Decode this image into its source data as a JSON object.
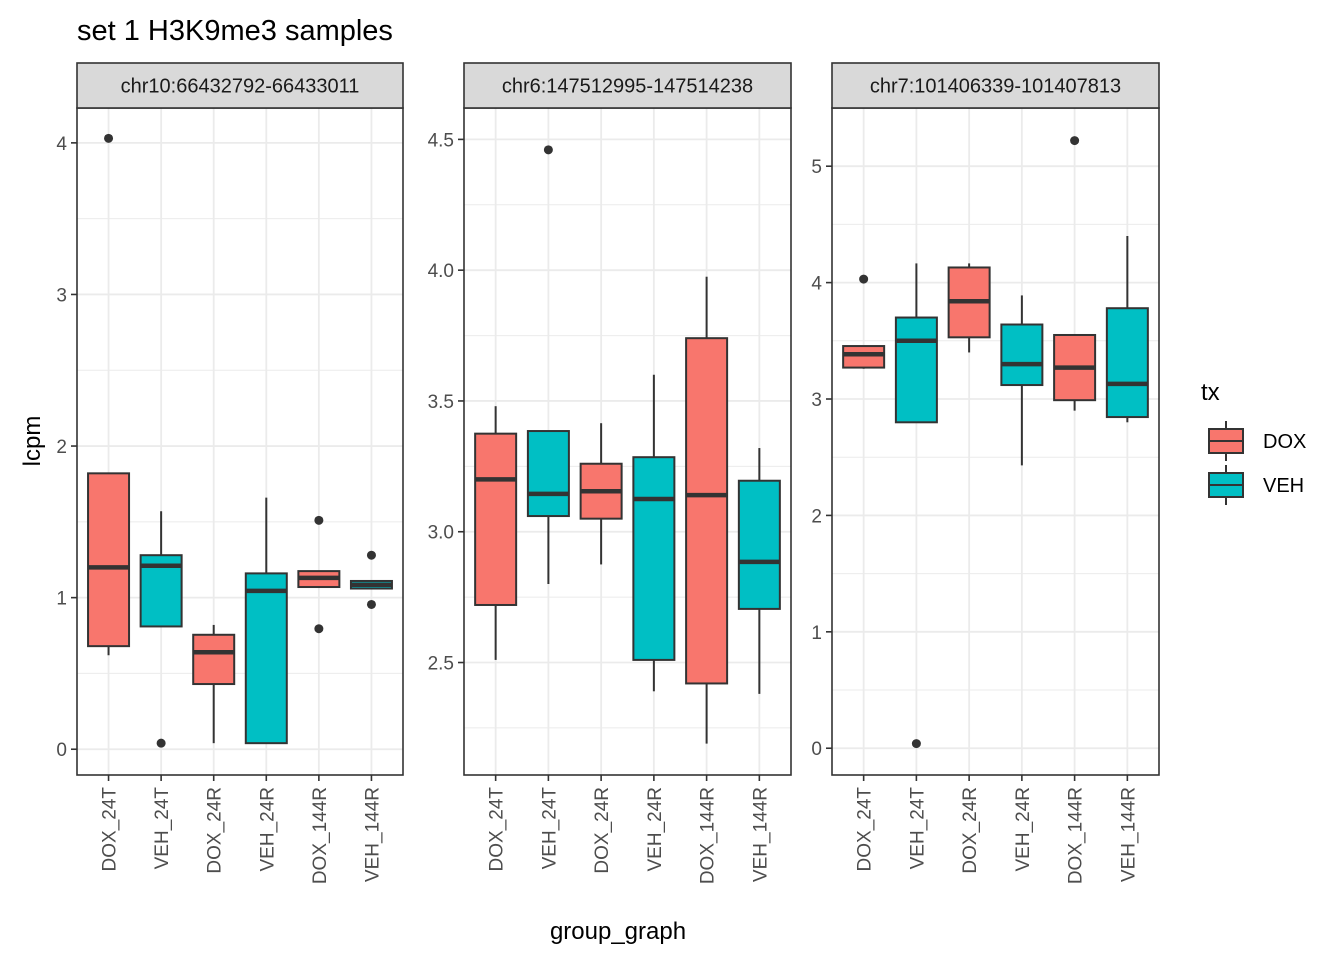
{
  "chart_data": {
    "type": "boxplot",
    "title": "set 1 H3K9me3 samples",
    "xlabel": "group_graph",
    "ylabel": "lcpm",
    "categories": [
      "DOX_24T",
      "VEH_24T",
      "DOX_24R",
      "VEH_24R",
      "DOX_144R",
      "VEH_144R"
    ],
    "category_fill_group": [
      "DOX",
      "VEH",
      "DOX",
      "VEH",
      "DOX",
      "VEH"
    ],
    "legend": {
      "title": "tx",
      "placement": "right",
      "entries": [
        {
          "label": "DOX",
          "color": "#F8766D"
        },
        {
          "label": "VEH",
          "color": "#00BFC4"
        }
      ]
    },
    "grid": true,
    "facets": [
      {
        "strip_label": "chr10:66432792-66433011",
        "ylim": [
          -0.17,
          4.23
        ],
        "yticks": [
          0,
          1,
          2,
          3,
          4
        ],
        "ytick_labels": [
          "0",
          "1",
          "2",
          "3",
          "4"
        ],
        "boxes": [
          {
            "category": "DOX_24T",
            "whisker_low": 0.62,
            "q1": 0.68,
            "median": 1.2,
            "q3": 1.82,
            "whisker_high": 1.82,
            "outliers": [
              4.03
            ]
          },
          {
            "category": "VEH_24T",
            "whisker_low": 0.81,
            "q1": 0.81,
            "median": 1.21,
            "q3": 1.28,
            "whisker_high": 1.57,
            "outliers": [
              0.04
            ]
          },
          {
            "category": "DOX_24R",
            "whisker_low": 0.04,
            "q1": 0.43,
            "median": 0.64,
            "q3": 0.755,
            "whisker_high": 0.82,
            "outliers": []
          },
          {
            "category": "VEH_24R",
            "whisker_low": 0.04,
            "q1": 0.04,
            "median": 1.045,
            "q3": 1.16,
            "whisker_high": 1.66,
            "outliers": []
          },
          {
            "category": "DOX_144R",
            "whisker_low": 1.07,
            "q1": 1.07,
            "median": 1.13,
            "q3": 1.175,
            "whisker_high": 1.175,
            "outliers": [
              1.51,
              0.795
            ]
          },
          {
            "category": "VEH_144R",
            "whisker_low": 1.06,
            "q1": 1.06,
            "median": 1.085,
            "q3": 1.11,
            "whisker_high": 1.11,
            "outliers": [
              1.28,
              0.955
            ]
          }
        ]
      },
      {
        "strip_label": "chr6:147512995-147514238",
        "ylim": [
          2.07,
          4.62
        ],
        "yticks": [
          2.5,
          3.0,
          3.5,
          4.0,
          4.5
        ],
        "ytick_labels": [
          "2.5",
          "3.0",
          "3.5",
          "4.0",
          "4.5"
        ],
        "boxes": [
          {
            "category": "DOX_24T",
            "whisker_low": 2.51,
            "q1": 2.72,
            "median": 3.2,
            "q3": 3.375,
            "whisker_high": 3.48,
            "outliers": []
          },
          {
            "category": "VEH_24T",
            "whisker_low": 2.8,
            "q1": 3.06,
            "median": 3.145,
            "q3": 3.385,
            "whisker_high": 3.385,
            "outliers": [
              4.46
            ]
          },
          {
            "category": "DOX_24R",
            "whisker_low": 2.875,
            "q1": 3.05,
            "median": 3.155,
            "q3": 3.26,
            "whisker_high": 3.415,
            "outliers": []
          },
          {
            "category": "VEH_24R",
            "whisker_low": 2.39,
            "q1": 2.51,
            "median": 3.125,
            "q3": 3.285,
            "whisker_high": 3.6,
            "outliers": []
          },
          {
            "category": "DOX_144R",
            "whisker_low": 2.19,
            "q1": 2.42,
            "median": 3.14,
            "q3": 3.74,
            "whisker_high": 3.975,
            "outliers": []
          },
          {
            "category": "VEH_144R",
            "whisker_low": 2.38,
            "q1": 2.705,
            "median": 2.885,
            "q3": 3.195,
            "whisker_high": 3.32,
            "outliers": []
          }
        ]
      },
      {
        "strip_label": "chr7:101406339-101407813",
        "ylim": [
          -0.23,
          5.5
        ],
        "yticks": [
          0,
          1,
          2,
          3,
          4,
          5
        ],
        "ytick_labels": [
          "0",
          "1",
          "2",
          "3",
          "4",
          "5"
        ],
        "boxes": [
          {
            "category": "DOX_24T",
            "whisker_low": 3.26,
            "q1": 3.27,
            "median": 3.385,
            "q3": 3.455,
            "whisker_high": 3.455,
            "outliers": [
              4.03
            ]
          },
          {
            "category": "VEH_24T",
            "whisker_low": 2.8,
            "q1": 2.8,
            "median": 3.5,
            "q3": 3.7,
            "whisker_high": 4.165,
            "outliers": [
              0.04
            ]
          },
          {
            "category": "DOX_24R",
            "whisker_low": 3.4,
            "q1": 3.53,
            "median": 3.84,
            "q3": 4.13,
            "whisker_high": 4.165,
            "outliers": []
          },
          {
            "category": "VEH_24R",
            "whisker_low": 2.43,
            "q1": 3.12,
            "median": 3.3,
            "q3": 3.64,
            "whisker_high": 3.89,
            "outliers": []
          },
          {
            "category": "DOX_144R",
            "whisker_low": 2.9,
            "q1": 2.99,
            "median": 3.27,
            "q3": 3.55,
            "whisker_high": 3.55,
            "outliers": [
              5.22
            ]
          },
          {
            "category": "VEH_144R",
            "whisker_low": 2.8,
            "q1": 2.845,
            "median": 3.13,
            "q3": 3.78,
            "whisker_high": 4.4,
            "outliers": []
          }
        ]
      }
    ]
  }
}
